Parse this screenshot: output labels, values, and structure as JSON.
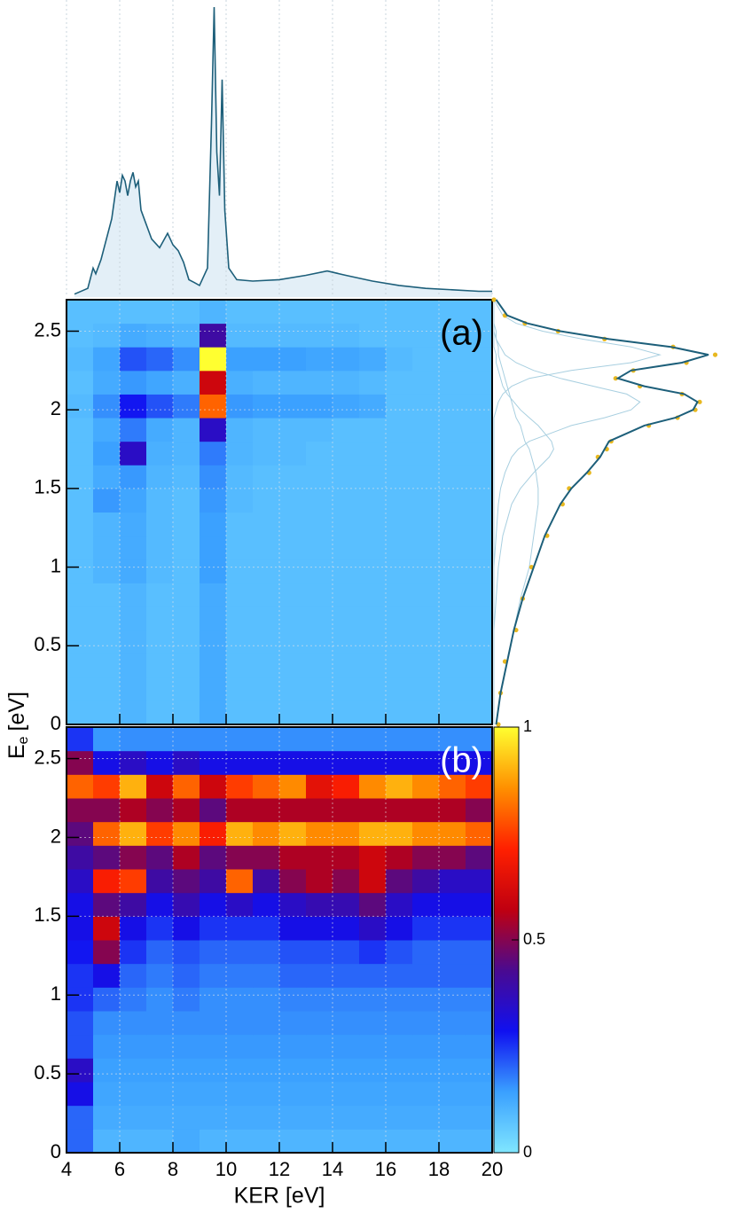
{
  "chart_data": [
    {
      "type": "line",
      "x": [
        4.3,
        4.8,
        5.0,
        5.1,
        5.3,
        5.5,
        5.7,
        5.9,
        6.0,
        6.1,
        6.2,
        6.3,
        6.4,
        6.5,
        6.6,
        6.7,
        6.8,
        7.0,
        7.2,
        7.5,
        7.8,
        8.0,
        8.2,
        8.4,
        8.6,
        8.8,
        9.0,
        9.3,
        9.45,
        9.55,
        9.65,
        9.75,
        9.85,
        9.95,
        10.1,
        10.4,
        11,
        12,
        13,
        13.8,
        14.5,
        15.5,
        16.5,
        17.5,
        18.5,
        19.5,
        20
      ],
      "values": [
        0.01,
        0.03,
        0.1,
        0.08,
        0.13,
        0.2,
        0.27,
        0.4,
        0.36,
        0.42,
        0.4,
        0.35,
        0.4,
        0.43,
        0.38,
        0.4,
        0.3,
        0.25,
        0.2,
        0.17,
        0.22,
        0.18,
        0.16,
        0.12,
        0.06,
        0.05,
        0.04,
        0.1,
        0.6,
        1,
        0.5,
        0.35,
        0.75,
        0.3,
        0.1,
        0.06,
        0.055,
        0.06,
        0.075,
        0.09,
        0.075,
        0.055,
        0.04,
        0.03,
        0.025,
        0.02,
        0.02
      ],
      "color": "#1d5f7a",
      "fill": "#e3eff7",
      "xlim": [
        4,
        20
      ],
      "ylim": [
        0,
        1
      ]
    },
    {
      "type": "heatmap",
      "annotation": "(a)",
      "annotation_color": "#000000",
      "ylabel": "E",
      "ylabel_sub": "e",
      "ylabel_unit": "[eV]",
      "xlim": [
        4,
        20
      ],
      "ylim": [
        0,
        2.7
      ],
      "yticks": [
        0,
        0.5,
        1,
        1.5,
        2,
        2.5
      ],
      "grid": true,
      "xbins": [
        4,
        5,
        6,
        7,
        8,
        9,
        10,
        11,
        12,
        13,
        14,
        15,
        16,
        17,
        18,
        19,
        20
      ],
      "ybins": [
        0,
        0.15,
        0.3,
        0.45,
        0.6,
        0.75,
        0.9,
        1.05,
        1.2,
        1.35,
        1.5,
        1.65,
        1.8,
        1.95,
        2.1,
        2.25,
        2.4,
        2.55,
        2.7
      ],
      "zlim": [
        0,
        1
      ],
      "colors": [
        "#80e6ff",
        "#3aa0ff",
        "#1010f0",
        "#4a0a90",
        "#c00010",
        "#ff2000",
        "#ff9000",
        "#ffff30"
      ],
      "z": [
        [
          0.08,
          0.08,
          0.1,
          0.08,
          0.08,
          0.12,
          0.08,
          0.08,
          0.08,
          0.08,
          0.08,
          0.08,
          0.08,
          0.08,
          0.08,
          0.08
        ],
        [
          0.08,
          0.08,
          0.1,
          0.08,
          0.08,
          0.12,
          0.08,
          0.08,
          0.08,
          0.08,
          0.08,
          0.08,
          0.08,
          0.08,
          0.08,
          0.08
        ],
        [
          0.08,
          0.08,
          0.1,
          0.08,
          0.08,
          0.12,
          0.08,
          0.08,
          0.08,
          0.08,
          0.08,
          0.08,
          0.08,
          0.08,
          0.08,
          0.08
        ],
        [
          0.08,
          0.08,
          0.1,
          0.08,
          0.08,
          0.12,
          0.08,
          0.08,
          0.08,
          0.08,
          0.08,
          0.08,
          0.08,
          0.08,
          0.08,
          0.08
        ],
        [
          0.08,
          0.08,
          0.1,
          0.08,
          0.08,
          0.12,
          0.08,
          0.08,
          0.08,
          0.08,
          0.08,
          0.08,
          0.08,
          0.08,
          0.08,
          0.08
        ],
        [
          0.08,
          0.08,
          0.1,
          0.08,
          0.08,
          0.12,
          0.08,
          0.08,
          0.08,
          0.08,
          0.08,
          0.08,
          0.08,
          0.08,
          0.08,
          0.08
        ],
        [
          0.08,
          0.1,
          0.12,
          0.09,
          0.08,
          0.14,
          0.08,
          0.08,
          0.08,
          0.08,
          0.08,
          0.08,
          0.08,
          0.08,
          0.08,
          0.08
        ],
        [
          0.08,
          0.1,
          0.12,
          0.09,
          0.08,
          0.14,
          0.08,
          0.08,
          0.08,
          0.08,
          0.08,
          0.08,
          0.08,
          0.08,
          0.08,
          0.08
        ],
        [
          0.08,
          0.1,
          0.12,
          0.09,
          0.08,
          0.14,
          0.08,
          0.08,
          0.08,
          0.08,
          0.08,
          0.08,
          0.08,
          0.08,
          0.08,
          0.08
        ],
        [
          0.08,
          0.15,
          0.13,
          0.09,
          0.08,
          0.15,
          0.09,
          0.08,
          0.08,
          0.08,
          0.08,
          0.08,
          0.08,
          0.08,
          0.08,
          0.08
        ],
        [
          0.08,
          0.12,
          0.15,
          0.1,
          0.09,
          0.16,
          0.09,
          0.08,
          0.08,
          0.08,
          0.08,
          0.08,
          0.08,
          0.08,
          0.08,
          0.08
        ],
        [
          0.08,
          0.14,
          0.35,
          0.11,
          0.1,
          0.18,
          0.1,
          0.09,
          0.09,
          0.08,
          0.08,
          0.08,
          0.08,
          0.08,
          0.08,
          0.08
        ],
        [
          0.08,
          0.12,
          0.18,
          0.12,
          0.1,
          0.35,
          0.1,
          0.09,
          0.09,
          0.09,
          0.08,
          0.08,
          0.08,
          0.08,
          0.08,
          0.08
        ],
        [
          0.09,
          0.16,
          0.28,
          0.22,
          0.18,
          0.8,
          0.15,
          0.14,
          0.14,
          0.14,
          0.13,
          0.12,
          0.08,
          0.08,
          0.08,
          0.08
        ],
        [
          0.08,
          0.12,
          0.15,
          0.13,
          0.11,
          0.6,
          0.11,
          0.1,
          0.1,
          0.1,
          0.1,
          0.09,
          0.08,
          0.08,
          0.08,
          0.08
        ],
        [
          0.09,
          0.13,
          0.22,
          0.2,
          0.16,
          1,
          0.14,
          0.14,
          0.14,
          0.13,
          0.13,
          0.12,
          0.09,
          0.08,
          0.08,
          0.08
        ],
        [
          0.08,
          0.09,
          0.12,
          0.11,
          0.1,
          0.4,
          0.09,
          0.09,
          0.09,
          0.09,
          0.09,
          0.08,
          0.08,
          0.08,
          0.08,
          0.08
        ],
        [
          0.08,
          0.08,
          0.08,
          0.08,
          0.08,
          0.1,
          0.08,
          0.08,
          0.08,
          0.08,
          0.08,
          0.08,
          0.08,
          0.08,
          0.08,
          0.08
        ]
      ]
    },
    {
      "type": "projection",
      "x": [
        0,
        0.2,
        0.4,
        0.6,
        0.8,
        1.0,
        1.2,
        1.4,
        1.5,
        1.6,
        1.7,
        1.75,
        1.8,
        1.9,
        1.95,
        2.0,
        2.05,
        2.1,
        2.15,
        2.2,
        2.25,
        2.3,
        2.35,
        2.4,
        2.45,
        2.5,
        2.55,
        2.6,
        2.7
      ],
      "xlim": [
        0,
        2.7
      ],
      "ylim": [
        0,
        1.05
      ],
      "series": [
        {
          "kind": "component",
          "color": "#a8cfe0",
          "values": [
            0,
            0,
            0,
            0,
            0,
            0,
            0,
            0,
            0,
            0,
            0,
            0,
            0,
            0,
            0,
            0.01,
            0.02,
            0.04,
            0.08,
            0.16,
            0.35,
            0.62,
            0.75,
            0.62,
            0.4,
            0.22,
            0.1,
            0.04,
            0
          ]
        },
        {
          "kind": "component",
          "color": "#a8cfe0",
          "values": [
            0,
            0,
            0,
            0,
            0,
            0,
            0.01,
            0.02,
            0.03,
            0.05,
            0.08,
            0.11,
            0.16,
            0.35,
            0.5,
            0.62,
            0.66,
            0.6,
            0.45,
            0.3,
            0.18,
            0.1,
            0.05,
            0.03,
            0.01,
            0,
            0,
            0,
            0
          ]
        },
        {
          "kind": "component",
          "color": "#a8cfe0",
          "values": [
            0,
            0,
            0,
            0,
            0.01,
            0.02,
            0.04,
            0.08,
            0.12,
            0.18,
            0.25,
            0.27,
            0.26,
            0.2,
            0.16,
            0.12,
            0.09,
            0.06,
            0.04,
            0.03,
            0.02,
            0.01,
            0.01,
            0,
            0,
            0,
            0,
            0,
            0
          ]
        },
        {
          "kind": "component",
          "color": "#a8cfe0",
          "values": [
            0.01,
            0.03,
            0.06,
            0.09,
            0.12,
            0.16,
            0.18,
            0.2,
            0.2,
            0.19,
            0.17,
            0.16,
            0.14,
            0.12,
            0.1,
            0.09,
            0.08,
            0.07,
            0.06,
            0.05,
            0.04,
            0.03,
            0.02,
            0.02,
            0.01,
            0.01,
            0,
            0,
            0
          ]
        },
        {
          "kind": "points",
          "color": "#e8b820",
          "values": [
            0.02,
            0.03,
            0.05,
            0.1,
            0.13,
            0.17,
            0.24,
            0.31,
            0.34,
            0.43,
            0.47,
            0.51,
            0.53,
            0.7,
            0.83,
            0.91,
            0.93,
            0.85,
            0.66,
            0.55,
            0.63,
            0.87,
            1.0,
            0.81,
            0.5,
            0.29,
            0.14,
            0.05,
            0.0
          ]
        },
        {
          "kind": "fit",
          "color": "#1d5f7a",
          "values": [
            0.01,
            0.03,
            0.06,
            0.09,
            0.13,
            0.18,
            0.23,
            0.3,
            0.35,
            0.42,
            0.48,
            0.5,
            0.52,
            0.68,
            0.82,
            0.9,
            0.92,
            0.86,
            0.68,
            0.56,
            0.62,
            0.85,
            0.97,
            0.8,
            0.52,
            0.3,
            0.15,
            0.06,
            0.01
          ]
        }
      ]
    },
    {
      "type": "heatmap",
      "annotation": "(b)",
      "annotation_color": "#ffffff",
      "xlabel": "KER [eV]",
      "xlim": [
        4,
        20
      ],
      "ylim": [
        0,
        2.7
      ],
      "xticks": [
        4,
        6,
        8,
        10,
        12,
        14,
        16,
        18,
        20
      ],
      "yticks": [
        0,
        0.5,
        1,
        1.5,
        2,
        2.5
      ],
      "grid": true,
      "xbins": [
        4,
        5,
        6,
        7,
        8,
        9,
        10,
        11,
        12,
        13,
        14,
        15,
        16,
        17,
        18,
        19,
        20
      ],
      "ybins": [
        0,
        0.15,
        0.3,
        0.45,
        0.6,
        0.75,
        0.9,
        1.05,
        1.2,
        1.35,
        1.5,
        1.65,
        1.8,
        1.95,
        2.1,
        2.25,
        2.4,
        2.55,
        2.7
      ],
      "zlim": [
        0,
        1
      ],
      "zticks": [
        0,
        0.5,
        1
      ],
      "colors": [
        "#80e6ff",
        "#3aa0ff",
        "#1010f0",
        "#4a0a90",
        "#c00010",
        "#ff2000",
        "#ff9000",
        "#ffff30"
      ],
      "z": [
        [
          0.2,
          0.1,
          0.1,
          0.1,
          0.12,
          0.1,
          0.1,
          0.1,
          0.1,
          0.1,
          0.1,
          0.1,
          0.1,
          0.1,
          0.1,
          0.1
        ],
        [
          0.2,
          0.12,
          0.12,
          0.12,
          0.12,
          0.12,
          0.12,
          0.12,
          0.12,
          0.12,
          0.12,
          0.12,
          0.12,
          0.12,
          0.12,
          0.12
        ],
        [
          0.3,
          0.13,
          0.13,
          0.13,
          0.13,
          0.13,
          0.13,
          0.13,
          0.13,
          0.13,
          0.13,
          0.13,
          0.13,
          0.13,
          0.13,
          0.13
        ],
        [
          0.35,
          0.14,
          0.14,
          0.14,
          0.14,
          0.14,
          0.14,
          0.14,
          0.14,
          0.14,
          0.14,
          0.14,
          0.14,
          0.14,
          0.14,
          0.14
        ],
        [
          0.22,
          0.15,
          0.15,
          0.15,
          0.15,
          0.15,
          0.15,
          0.15,
          0.15,
          0.15,
          0.15,
          0.15,
          0.15,
          0.15,
          0.15,
          0.15
        ],
        [
          0.22,
          0.16,
          0.16,
          0.16,
          0.16,
          0.16,
          0.16,
          0.16,
          0.16,
          0.16,
          0.16,
          0.16,
          0.16,
          0.16,
          0.16,
          0.16
        ],
        [
          0.25,
          0.2,
          0.18,
          0.16,
          0.18,
          0.16,
          0.16,
          0.16,
          0.17,
          0.17,
          0.17,
          0.17,
          0.17,
          0.17,
          0.17,
          0.17
        ],
        [
          0.25,
          0.3,
          0.2,
          0.18,
          0.2,
          0.18,
          0.18,
          0.18,
          0.2,
          0.2,
          0.2,
          0.2,
          0.2,
          0.2,
          0.2,
          0.2
        ],
        [
          0.28,
          0.5,
          0.25,
          0.2,
          0.22,
          0.2,
          0.2,
          0.2,
          0.22,
          0.22,
          0.22,
          0.25,
          0.22,
          0.2,
          0.2,
          0.2
        ],
        [
          0.3,
          0.6,
          0.3,
          0.25,
          0.3,
          0.25,
          0.25,
          0.25,
          0.3,
          0.3,
          0.3,
          0.35,
          0.3,
          0.25,
          0.25,
          0.25
        ],
        [
          0.3,
          0.45,
          0.4,
          0.3,
          0.38,
          0.3,
          0.35,
          0.3,
          0.35,
          0.38,
          0.38,
          0.45,
          0.35,
          0.3,
          0.3,
          0.3
        ],
        [
          0.35,
          0.7,
          0.75,
          0.4,
          0.45,
          0.4,
          0.8,
          0.4,
          0.5,
          0.55,
          0.5,
          0.6,
          0.45,
          0.4,
          0.35,
          0.35
        ],
        [
          0.4,
          0.45,
          0.5,
          0.45,
          0.55,
          0.45,
          0.5,
          0.5,
          0.55,
          0.55,
          0.55,
          0.6,
          0.55,
          0.5,
          0.5,
          0.45
        ],
        [
          0.45,
          0.8,
          0.9,
          0.75,
          0.85,
          0.7,
          0.9,
          0.85,
          0.9,
          0.85,
          0.85,
          0.9,
          0.9,
          0.85,
          0.85,
          0.8
        ],
        [
          0.5,
          0.5,
          0.55,
          0.5,
          0.55,
          0.45,
          0.55,
          0.55,
          0.55,
          0.55,
          0.55,
          0.55,
          0.55,
          0.55,
          0.55,
          0.5
        ],
        [
          0.8,
          0.75,
          0.9,
          0.6,
          0.8,
          0.6,
          0.75,
          0.8,
          0.85,
          0.65,
          0.7,
          0.85,
          0.9,
          0.85,
          0.8,
          0.75
        ],
        [
          0.5,
          0.3,
          0.35,
          0.3,
          0.35,
          0.3,
          0.3,
          0.3,
          0.3,
          0.3,
          0.3,
          0.3,
          0.3,
          0.3,
          0.3,
          0.3
        ],
        [
          0.25,
          0.15,
          0.16,
          0.16,
          0.16,
          0.16,
          0.16,
          0.16,
          0.16,
          0.16,
          0.16,
          0.16,
          0.16,
          0.16,
          0.16,
          0.16
        ]
      ]
    }
  ]
}
